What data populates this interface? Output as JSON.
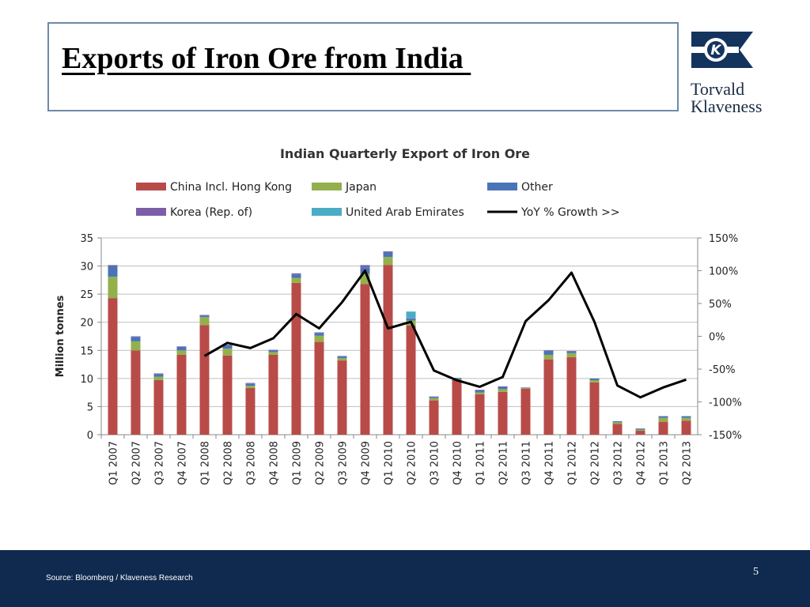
{
  "slide": {
    "title": "Exports of Iron Ore from India ",
    "logo_line1": "Torvald",
    "logo_line2": "Klaveness",
    "logo_letter": "K",
    "source": "Source: Bloomberg / Klaveness Research",
    "page_number": "5",
    "footer_color": "#0f2a4e"
  },
  "chart_data": {
    "type": "bar",
    "stacked": true,
    "title": "Indian Quarterly Export of Iron Ore",
    "ylabel": "Million tonnes",
    "ylim": [
      0,
      35
    ],
    "yticks": [
      0,
      5,
      10,
      15,
      20,
      25,
      30,
      35
    ],
    "y2lim": [
      -150,
      150
    ],
    "y2ticks": [
      -150,
      -100,
      -50,
      0,
      50,
      100,
      150
    ],
    "y2tick_labels": [
      "-150%",
      "-100%",
      "-50%",
      "0%",
      "50%",
      "100%",
      "150%"
    ],
    "grid": true,
    "legend_position": "top",
    "categories": [
      "Q1 2007",
      "Q2 2007",
      "Q3 2007",
      "Q4 2007",
      "Q1 2008",
      "Q2 2008",
      "Q3 2008",
      "Q4 2008",
      "Q1 2009",
      "Q2 2009",
      "Q3 2009",
      "Q4 2009",
      "Q1 2010",
      "Q2 2010",
      "Q3 2010",
      "Q4 2010",
      "Q1 2011",
      "Q2 2011",
      "Q3 2011",
      "Q4 2011",
      "Q1 2012",
      "Q2 2012",
      "Q3 2012",
      "Q4 2012",
      "Q1 2013",
      "Q2 2013"
    ],
    "series": [
      {
        "name": "China Incl. Hong Kong",
        "color": "#b84b48",
        "values": [
          24.3,
          15.0,
          9.7,
          14.2,
          19.5,
          14.1,
          8.3,
          14.2,
          27.0,
          16.5,
          13.2,
          26.8,
          30.2,
          19.4,
          6.1,
          9.7,
          7.2,
          7.6,
          8.2,
          13.4,
          13.8,
          9.3,
          1.9,
          0.7,
          2.3,
          2.5
        ]
      },
      {
        "name": "Japan",
        "color": "#93b04d",
        "values": [
          3.8,
          1.6,
          0.6,
          0.8,
          1.4,
          1.2,
          0.4,
          0.5,
          0.9,
          1.1,
          0.4,
          1.8,
          1.4,
          0.9,
          0.4,
          0.2,
          0.3,
          0.5,
          0.1,
          0.8,
          0.7,
          0.4,
          0.3,
          0.2,
          0.7,
          0.5
        ]
      },
      {
        "name": "Other",
        "color": "#4a74b8",
        "values": [
          1.7,
          0.8,
          0.5,
          0.6,
          0.3,
          0.6,
          0.4,
          0.3,
          0.6,
          0.5,
          0.3,
          1.1,
          0.8,
          0.3,
          0.2,
          0.2,
          0.4,
          0.4,
          0.1,
          0.7,
          0.3,
          0.3,
          0.2,
          0.2,
          0.3,
          0.3
        ]
      },
      {
        "name": "Korea (Rep. of)",
        "color": "#7b5ea7",
        "values": [
          0.3,
          0.1,
          0.1,
          0.1,
          0.1,
          0.1,
          0.1,
          0.1,
          0.2,
          0.1,
          0.1,
          0.4,
          0.2,
          0.1,
          0.1,
          0.0,
          0.1,
          0.1,
          0.0,
          0.1,
          0.1,
          0.0,
          0.0,
          0.0,
          0.0,
          0.0
        ]
      },
      {
        "name": "United Arab Emirates",
        "color": "#4bacc6",
        "values": [
          0.1,
          0.0,
          0.0,
          0.0,
          0.0,
          0.0,
          0.0,
          0.0,
          0.0,
          0.0,
          0.0,
          0.1,
          0.0,
          1.2,
          0.0,
          0.0,
          0.0,
          0.0,
          0.0,
          0.0,
          0.0,
          0.0,
          0.0,
          0.0,
          0.0,
          0.0
        ]
      }
    ],
    "line_series": {
      "name": "YoY % Growth >>",
      "color": "#000000",
      "axis": "secondary",
      "values": [
        null,
        null,
        null,
        null,
        -30,
        -10,
        -18,
        -3,
        34,
        12,
        52,
        100,
        12,
        22,
        -52,
        -67,
        -77,
        -62,
        23,
        55,
        97,
        22,
        -75,
        -93,
        -78,
        -66
      ]
    }
  }
}
